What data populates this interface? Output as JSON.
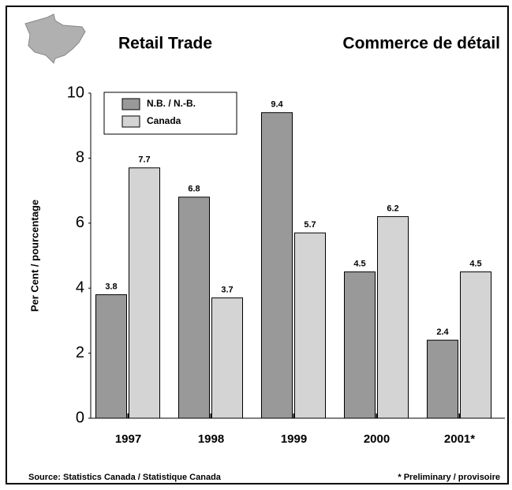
{
  "chart_data": {
    "type": "bar",
    "title": "Retail Trade",
    "subtitle": "Commerce de détail",
    "ylabel": "Per Cent / pourcentage",
    "source": "Source: Statistics Canada / Statistique Canada",
    "note": "* Preliminary / provisoire",
    "categories": [
      "1997",
      "1998",
      "1999",
      "2000",
      "2001*"
    ],
    "series": [
      {
        "name": "N.B. / N.-B.",
        "color": "#999999",
        "values": [
          3.8,
          6.8,
          9.4,
          4.5,
          2.4
        ]
      },
      {
        "name": "Canada",
        "color": "#d4d4d4",
        "values": [
          7.7,
          3.7,
          5.7,
          6.2,
          4.5
        ]
      }
    ],
    "ylim": [
      0,
      10
    ],
    "yticks": [
      0,
      2,
      4,
      6,
      8,
      10
    ],
    "grid": false,
    "legend": "top-left"
  }
}
